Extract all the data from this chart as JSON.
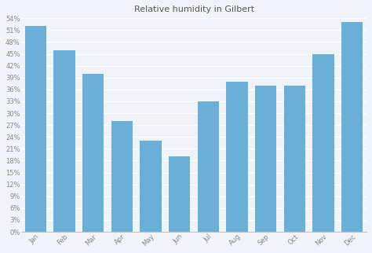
{
  "title": "Relative humidity in Gilbert",
  "months": [
    "Jan",
    "Feb",
    "Mar",
    "Apr",
    "May",
    "Jun",
    "Jul",
    "Aug",
    "Sep",
    "Oct",
    "Nov",
    "Dec"
  ],
  "values": [
    52,
    46,
    40,
    28,
    23,
    19,
    33,
    38,
    37,
    37,
    45,
    53
  ],
  "bar_color": "#6aafd6",
  "background_color": "#f0f4f8",
  "plot_bg_color": "#f0f4f8",
  "ylim": [
    0,
    54
  ],
  "yticks": [
    0,
    3,
    6,
    9,
    12,
    15,
    18,
    21,
    24,
    27,
    30,
    33,
    36,
    39,
    42,
    45,
    48,
    51,
    54
  ],
  "ytick_labels": [
    "0%",
    "3%",
    "6%",
    "9%",
    "12%",
    "15%",
    "18%",
    "21%",
    "24%",
    "27%",
    "30%",
    "33%",
    "36%",
    "39%",
    "42%",
    "45%",
    "48%",
    "51%",
    "54%"
  ],
  "grid_color": "#ffffff",
  "title_fontsize": 8,
  "tick_fontsize": 6,
  "tick_color": "#888888",
  "title_color": "#555555"
}
